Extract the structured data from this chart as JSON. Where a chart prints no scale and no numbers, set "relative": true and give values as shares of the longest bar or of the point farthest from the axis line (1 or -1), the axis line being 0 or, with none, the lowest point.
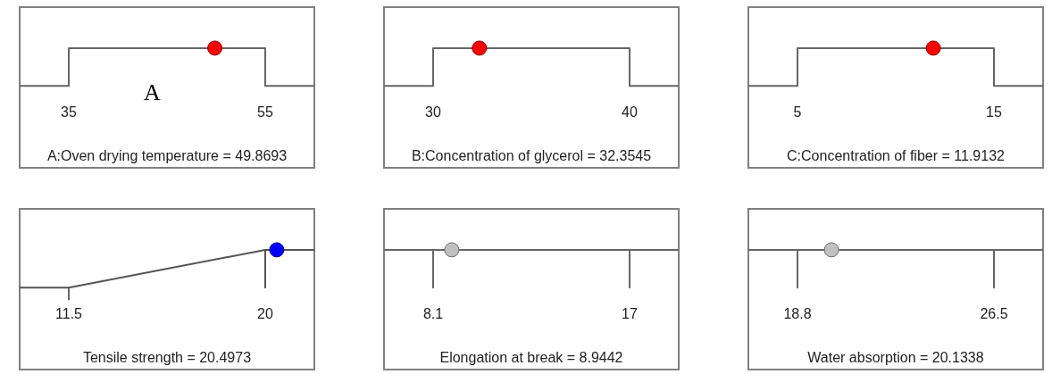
{
  "chart_data": [
    {
      "type": "line",
      "xlabel": "A:Oven drying temperature = 49.8693",
      "xlim": [
        30,
        60
      ],
      "xticks": [
        35,
        55
      ],
      "relative": true,
      "tick_labels": "x",
      "annotations": [
        "A"
      ],
      "series": [
        {
          "color": "#666666",
          "x": [
            30,
            35,
            35,
            55,
            55,
            60
          ],
          "values": [
            0,
            0,
            1,
            1,
            0,
            0
          ]
        },
        {
          "type": "scatter",
          "marker": "circle",
          "color": "#ff0000",
          "x": [
            49.8693
          ],
          "values": [
            1
          ]
        }
      ]
    },
    {
      "type": "line",
      "xlabel": "B:Concentration of glycerol = 32.3545",
      "xlim": [
        27.5,
        42.5
      ],
      "xticks": [
        30,
        40
      ],
      "relative": true,
      "tick_labels": "x",
      "series": [
        {
          "color": "#666666",
          "x": [
            27.5,
            30,
            30,
            40,
            40,
            42.5
          ],
          "values": [
            0,
            0,
            1,
            1,
            0,
            0
          ]
        },
        {
          "type": "scatter",
          "marker": "circle",
          "color": "#ff0000",
          "x": [
            32.3545
          ],
          "values": [
            1
          ]
        }
      ]
    },
    {
      "type": "line",
      "xlabel": "C:Concentration of fiber = 11.9132",
      "xlim": [
        2.5,
        17.5
      ],
      "xticks": [
        5,
        15
      ],
      "relative": true,
      "tick_labels": "x",
      "series": [
        {
          "color": "#666666",
          "x": [
            2.5,
            5,
            5,
            15,
            15,
            17.5
          ],
          "values": [
            0,
            0,
            1,
            1,
            0,
            0
          ]
        },
        {
          "type": "scatter",
          "marker": "circle",
          "color": "#ff0000",
          "x": [
            11.9132
          ],
          "values": [
            1
          ]
        }
      ]
    },
    {
      "type": "line",
      "xlabel": "Tensile strength = 20.4973",
      "xlim": [
        9.375,
        22.125
      ],
      "xticks": [
        11.5,
        20
      ],
      "relative": true,
      "tick_labels": "x",
      "series": [
        {
          "color": "#555555",
          "x": [
            9.375,
            11.5,
            20,
            20,
            20,
            22.125
          ],
          "values": [
            0,
            0,
            1,
            0,
            1,
            1
          ]
        },
        {
          "type": "scatter",
          "marker": "circle",
          "color": "#0000ff",
          "x": [
            20.4973
          ],
          "values": [
            1
          ]
        }
      ]
    },
    {
      "type": "line",
      "xlabel": "Elongation at break = 8.9442",
      "xlim": [
        5.875,
        19.225
      ],
      "xticks": [
        8.1,
        17
      ],
      "relative": true,
      "tick_labels": "x",
      "series": [
        {
          "color": "#666666",
          "x": [
            5.875,
            8.1,
            8.1,
            8.1,
            17,
            17,
            17,
            19.225
          ],
          "values": [
            1,
            1,
            0,
            1,
            1,
            0,
            1,
            1
          ]
        },
        {
          "type": "scatter",
          "marker": "circle",
          "color": "#c0c0c0",
          "x": [
            8.9442
          ],
          "values": [
            1
          ]
        }
      ]
    },
    {
      "type": "line",
      "xlabel": "Water absorption = 20.1338",
      "xlim": [
        16.875,
        28.425
      ],
      "xticks": [
        18.8,
        26.5
      ],
      "relative": true,
      "tick_labels": "x",
      "series": [
        {
          "color": "#666666",
          "x": [
            16.875,
            18.8,
            18.8,
            18.8,
            26.5,
            26.5,
            26.5,
            28.425
          ],
          "values": [
            1,
            1,
            0,
            1,
            1,
            0,
            1,
            1
          ]
        },
        {
          "type": "scatter",
          "marker": "circle",
          "color": "#c0c0c0",
          "x": [
            20.1338
          ],
          "values": [
            1
          ]
        }
      ]
    }
  ]
}
